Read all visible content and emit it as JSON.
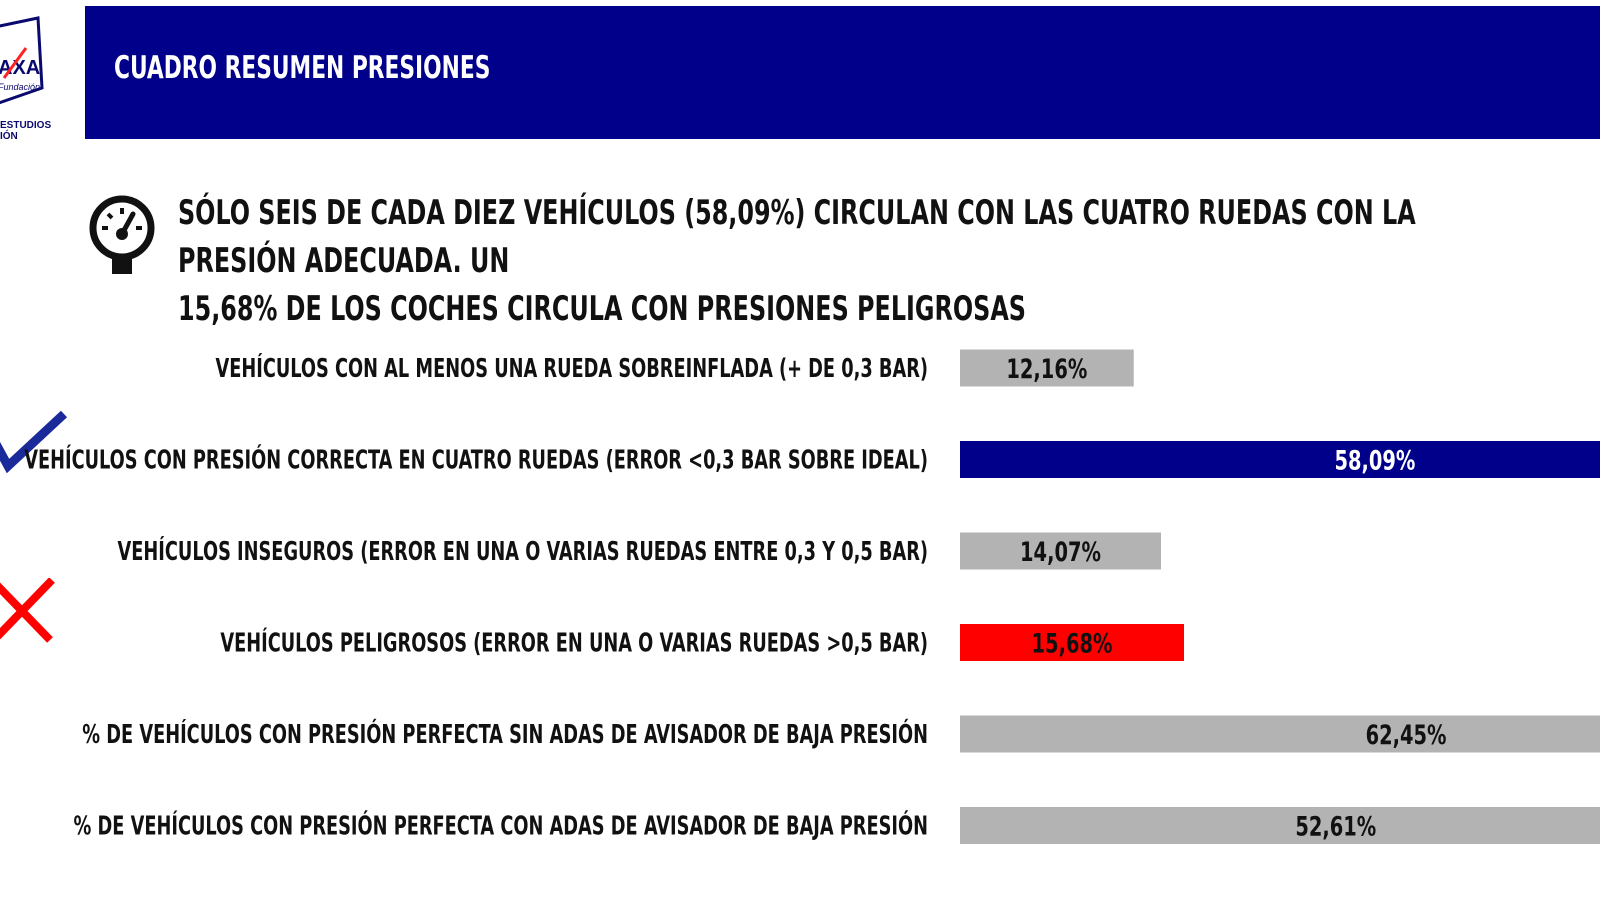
{
  "header": {
    "title": "CUADRO RESUMEN PRESIONES",
    "logo_text_line1": "ESTUDIOS",
    "logo_text_line2": "IÓN",
    "logo_brand": "AXA",
    "logo_sub": "Fundación"
  },
  "headline": {
    "line1": "SÓLO SEIS DE CADA DIEZ VEHÍCULOS (58,09%) CIRCULAN CON LAS CUATRO RUEDAS CON LA PRESIÓN ADECUADA. UN",
    "line2": "15,68% DE LOS COCHES CIRCULA CON PRESIONES PELIGROSAS"
  },
  "icons": {
    "headline": "gauge-icon",
    "correct": "checkmark-icon",
    "dangerous": "cross-icon"
  },
  "colors": {
    "header_bg": "#00008b",
    "bar_gray": "#b3b3b3",
    "bar_blue": "#00008b",
    "bar_red": "#ff0000",
    "check": "#1a2a9a",
    "cross": "#ff0000"
  },
  "chart_data": {
    "type": "bar",
    "orientation": "horizontal",
    "categories": [
      "VEHÍCULOS CON AL MENOS UNA RUEDA  SOBREINFLADA (+ DE 0,3 BAR)",
      "VEHÍCULOS CON PRESIÓN CORRECTA EN CUATRO RUEDAS  (ERROR <0,3 BAR SOBRE IDEAL)",
      "VEHÍCULOS INSEGUROS (ERROR EN UNA O VARIAS RUEDAS ENTRE 0,3 Y 0,5 BAR)",
      "VEHÍCULOS PELIGROSOS (ERROR EN UNA O VARIAS RUEDAS >0,5 BAR)",
      "% DE VEHÍCULOS CON PRESIÓN PERFECTA SIN ADAS DE AVISADOR DE BAJA PRESIÓN",
      "% DE VEHÍCULOS CON PRESIÓN PERFECTA CON ADAS DE AVISADOR DE BAJA PRESIÓN"
    ],
    "values": [
      12.16,
      58.09,
      14.07,
      15.68,
      62.45,
      52.61
    ],
    "value_labels": [
      "12,16%",
      "58,09%",
      "14,07%",
      "15,68%",
      "62,45%",
      "52,61%"
    ],
    "bar_colors": [
      "#b3b3b3",
      "#00008b",
      "#b3b3b3",
      "#ff0000",
      "#b3b3b3",
      "#b3b3b3"
    ],
    "label_colors": [
      "#111111",
      "#ffffff",
      "#111111",
      "#111111",
      "#111111",
      "#111111"
    ],
    "xlim": [
      0,
      56
    ],
    "grid": false,
    "legend": false
  }
}
